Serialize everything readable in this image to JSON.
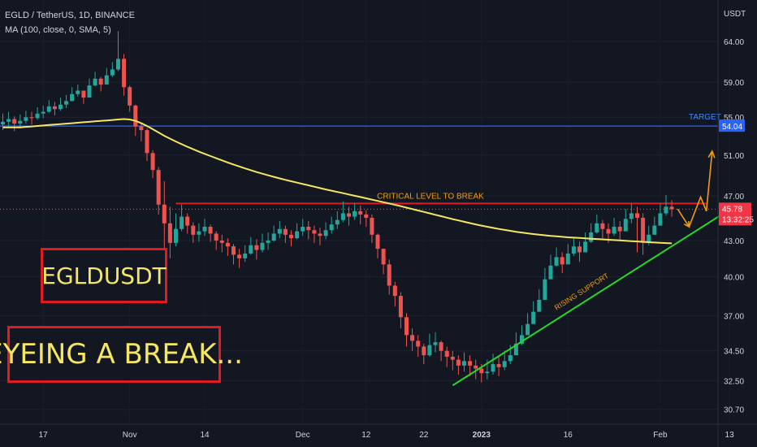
{
  "header": {
    "title": "EGLD / TetherUS, 1D, BINANCE",
    "indicator": "MA (100, close, 0, SMA, 5)"
  },
  "price_axis": {
    "currency": "USDT",
    "ticks": [
      "64.00",
      "59.00",
      "55.00",
      "51.00",
      "47.00",
      "43.00",
      "40.00",
      "37.00",
      "34.50",
      "32.50",
      "30.70"
    ],
    "target_price": "54.04",
    "last_price": "45.78",
    "countdown": "13:32:25"
  },
  "time_axis": {
    "ticks": [
      "17",
      "Nov",
      "14",
      "Dec",
      "12",
      "22",
      "2023",
      "16",
      "Feb",
      "13"
    ]
  },
  "annotations": {
    "target": "TARGET",
    "critical": "CRITICAL LEVEL TO BREAK",
    "support": "RISING SUPPORT",
    "box_symbol": "EGLDUSDT",
    "box_headline": "EYEING A BREAK..."
  },
  "colors": {
    "background": "#131722",
    "up": "#26a69a",
    "down": "#ef5350",
    "ma_line": "#f5e663",
    "target_line": "#2962ff",
    "resistance_line": "#e01b24",
    "support_line": "#27d827",
    "projection": "#f39c12",
    "label_border": "#e01b24",
    "label_text": "#f5e663"
  },
  "chart_data": {
    "type": "candlestick",
    "y_scale": "log",
    "ylim": [
      29.8,
      69.5
    ],
    "x": [
      "Oct 10",
      "Oct 11",
      "Oct 12",
      "Oct 13",
      "Oct 14",
      "Oct 15",
      "Oct 16",
      "Oct 17",
      "Oct 18",
      "Oct 19",
      "Oct 20",
      "Oct 21",
      "Oct 22",
      "Oct 23",
      "Oct 24",
      "Oct 25",
      "Oct 26",
      "Oct 27",
      "Oct 28",
      "Oct 29",
      "Oct 30",
      "Oct 31",
      "Nov 1",
      "Nov 2",
      "Nov 3",
      "Nov 4",
      "Nov 5",
      "Nov 6",
      "Nov 7",
      "Nov 8",
      "Nov 9",
      "Nov 10",
      "Nov 11",
      "Nov 12",
      "Nov 13",
      "Nov 14",
      "Nov 15",
      "Nov 16",
      "Nov 17",
      "Nov 18",
      "Nov 19",
      "Nov 20",
      "Nov 21",
      "Nov 22",
      "Nov 23",
      "Nov 24",
      "Nov 25",
      "Nov 26",
      "Nov 27",
      "Nov 28",
      "Nov 29",
      "Nov 30",
      "Dec 1",
      "Dec 2",
      "Dec 3",
      "Dec 4",
      "Dec 5",
      "Dec 6",
      "Dec 7",
      "Dec 8",
      "Dec 9",
      "Dec 10",
      "Dec 11",
      "Dec 12",
      "Dec 13",
      "Dec 14",
      "Dec 15",
      "Dec 16",
      "Dec 17",
      "Dec 18",
      "Dec 19",
      "Dec 20",
      "Dec 21",
      "Dec 22",
      "Dec 23",
      "Dec 24",
      "Dec 25",
      "Dec 26",
      "Dec 27",
      "Dec 28",
      "Dec 29",
      "Dec 30",
      "Dec 31",
      "Jan 1",
      "Jan 2",
      "Jan 3",
      "Jan 4",
      "Jan 5",
      "Jan 6",
      "Jan 7",
      "Jan 8",
      "Jan 9",
      "Jan 10",
      "Jan 11",
      "Jan 12",
      "Jan 13",
      "Jan 14",
      "Jan 15",
      "Jan 16",
      "Jan 17",
      "Jan 18",
      "Jan 19",
      "Jan 20",
      "Jan 21",
      "Jan 22",
      "Jan 23",
      "Jan 24",
      "Jan 25",
      "Jan 26",
      "Jan 27",
      "Jan 28",
      "Jan 29",
      "Jan 30",
      "Jan 31",
      "Feb 1",
      "Feb 2",
      "Feb 3"
    ],
    "close": [
      54.5,
      54.8,
      54.3,
      54.6,
      55.0,
      54.9,
      55.4,
      55.6,
      56.2,
      55.9,
      56.4,
      56.8,
      57.6,
      58.0,
      57.2,
      58.6,
      59.4,
      58.7,
      59.8,
      60.5,
      61.8,
      58.4,
      56.3,
      54.0,
      53.6,
      51.2,
      49.5,
      46.2,
      44.5,
      42.8,
      44.0,
      45.1,
      44.3,
      43.5,
      43.8,
      44.2,
      43.6,
      43.0,
      42.8,
      42.5,
      41.8,
      41.5,
      41.9,
      42.6,
      42.2,
      42.8,
      43.0,
      43.6,
      44.0,
      43.5,
      43.2,
      43.8,
      44.2,
      43.9,
      43.6,
      43.4,
      43.9,
      44.4,
      44.8,
      45.4,
      45.1,
      45.6,
      45.3,
      45.0,
      43.5,
      42.3,
      41.0,
      39.3,
      38.5,
      36.9,
      35.6,
      35.2,
      34.8,
      34.2,
      34.9,
      35.1,
      34.5,
      34.1,
      33.9,
      33.5,
      33.8,
      33.5,
      33.3,
      33.0,
      33.1,
      33.6,
      33.4,
      33.8,
      34.2,
      35.0,
      35.6,
      36.4,
      37.3,
      38.2,
      39.8,
      40.9,
      41.6,
      41.0,
      41.9,
      42.5,
      42.0,
      42.9,
      43.7,
      44.5,
      44.0,
      43.6,
      44.2,
      43.8,
      44.9,
      45.4,
      45.0,
      42.8,
      43.5,
      44.3,
      45.4,
      46.0,
      45.78
    ],
    "high": [
      55.4,
      55.6,
      55.1,
      55.3,
      55.7,
      55.6,
      56.1,
      56.3,
      56.9,
      56.7,
      57.2,
      57.5,
      58.4,
      58.7,
      58.0,
      59.4,
      60.2,
      59.6,
      60.7,
      61.4,
      65.3,
      62.4,
      58.6,
      56.4,
      54.4,
      53.8,
      51.5,
      49.8,
      48.4,
      46.0,
      45.4,
      46.2,
      45.4,
      44.6,
      44.5,
      44.9,
      44.4,
      43.8,
      43.5,
      43.2,
      42.7,
      42.3,
      42.6,
      43.3,
      43.1,
      43.6,
      43.7,
      44.3,
      44.7,
      44.3,
      43.9,
      44.5,
      44.9,
      44.7,
      44.3,
      44.1,
      44.6,
      45.1,
      45.6,
      46.5,
      46.0,
      46.3,
      46.1,
      45.7,
      45.3,
      43.6,
      42.3,
      41.4,
      39.6,
      38.8,
      37.2,
      36.1,
      35.6,
      35.0,
      35.7,
      35.8,
      35.2,
      34.8,
      34.5,
      34.2,
      34.4,
      34.2,
      33.9,
      33.6,
      33.9,
      34.3,
      34.1,
      34.5,
      34.9,
      35.8,
      36.3,
      37.2,
      38.1,
      39.0,
      40.7,
      41.8,
      42.4,
      42.0,
      42.7,
      43.3,
      42.9,
      43.7,
      44.5,
      45.3,
      44.8,
      44.5,
      45.0,
      44.7,
      45.8,
      46.3,
      46.0,
      45.4,
      44.3,
      45.1,
      46.3,
      47.1,
      46.6
    ],
    "low": [
      53.6,
      54.0,
      53.5,
      53.8,
      54.3,
      54.2,
      54.7,
      54.9,
      55.5,
      55.2,
      55.7,
      56.0,
      56.8,
      57.3,
      56.5,
      57.8,
      58.5,
      57.9,
      58.9,
      59.6,
      60.3,
      57.4,
      55.6,
      53.0,
      52.4,
      50.4,
      48.7,
      45.3,
      42.0,
      41.5,
      42.5,
      43.8,
      43.6,
      42.8,
      42.9,
      43.4,
      42.9,
      42.2,
      42.0,
      41.7,
      41.0,
      40.7,
      41.2,
      41.8,
      41.4,
      42.0,
      42.2,
      42.9,
      43.2,
      42.8,
      42.5,
      43.1,
      43.4,
      43.1,
      42.8,
      42.6,
      43.1,
      43.6,
      44.0,
      44.6,
      44.3,
      44.8,
      44.4,
      44.2,
      42.8,
      41.5,
      40.2,
      38.6,
      37.7,
      36.1,
      34.8,
      34.5,
      34.1,
      33.6,
      34.1,
      34.4,
      33.8,
      33.4,
      33.2,
      32.9,
      33.1,
      32.8,
      32.6,
      32.4,
      32.6,
      32.9,
      32.8,
      33.2,
      33.6,
      34.3,
      34.9,
      35.7,
      36.6,
      37.5,
      38.9,
      40.0,
      40.8,
      40.3,
      41.1,
      41.7,
      41.2,
      42.1,
      42.8,
      43.6,
      43.2,
      42.8,
      43.4,
      43.0,
      44.0,
      44.5,
      42.0,
      41.8,
      42.6,
      43.5,
      44.6,
      45.2,
      45.1
    ],
    "ma_100": [
      53.9,
      53.9,
      53.9,
      53.9,
      53.95,
      54.0,
      54.05,
      54.1,
      54.15,
      54.2,
      54.25,
      54.3,
      54.35,
      54.4,
      54.45,
      54.5,
      54.55,
      54.6,
      54.65,
      54.7,
      54.75,
      54.8,
      54.75,
      54.6,
      54.35,
      54.05,
      53.7,
      53.35,
      53.0,
      52.7,
      52.4,
      52.12,
      51.85,
      51.6,
      51.35,
      51.12,
      50.9,
      50.68,
      50.46,
      50.25,
      50.05,
      49.85,
      49.66,
      49.48,
      49.3,
      49.14,
      48.98,
      48.83,
      48.68,
      48.54,
      48.4,
      48.27,
      48.14,
      48.01,
      47.88,
      47.75,
      47.62,
      47.5,
      47.38,
      47.26,
      47.14,
      47.02,
      46.9,
      46.78,
      46.66,
      46.54,
      46.42,
      46.3,
      46.18,
      46.05,
      45.92,
      45.79,
      45.66,
      45.53,
      45.4,
      45.27,
      45.14,
      45.01,
      44.88,
      44.76,
      44.64,
      44.52,
      44.41,
      44.3,
      44.2,
      44.1,
      44.01,
      43.92,
      43.84,
      43.76,
      43.69,
      43.62,
      43.56,
      43.5,
      43.45,
      43.4,
      43.36,
      43.32,
      43.28,
      43.25,
      43.22,
      43.19,
      43.16,
      43.13,
      43.1,
      43.07,
      43.04,
      43.01,
      42.98,
      42.95,
      42.92,
      42.89,
      42.86,
      42.83,
      42.8,
      42.78,
      42.76
    ],
    "target_level": 54.04,
    "resistance_level": 46.3,
    "support_line": {
      "from": [
        "Dec 27",
        32.2
      ],
      "to": [
        "Feb 12",
        45.4
      ]
    },
    "projection": [
      [
        "Feb 4",
        45.8
      ],
      [
        "Feb 6",
        44.2
      ],
      [
        "Feb 8",
        46.9
      ],
      [
        "Feb 9",
        45.6
      ],
      [
        "Feb 10",
        51.4
      ]
    ]
  }
}
